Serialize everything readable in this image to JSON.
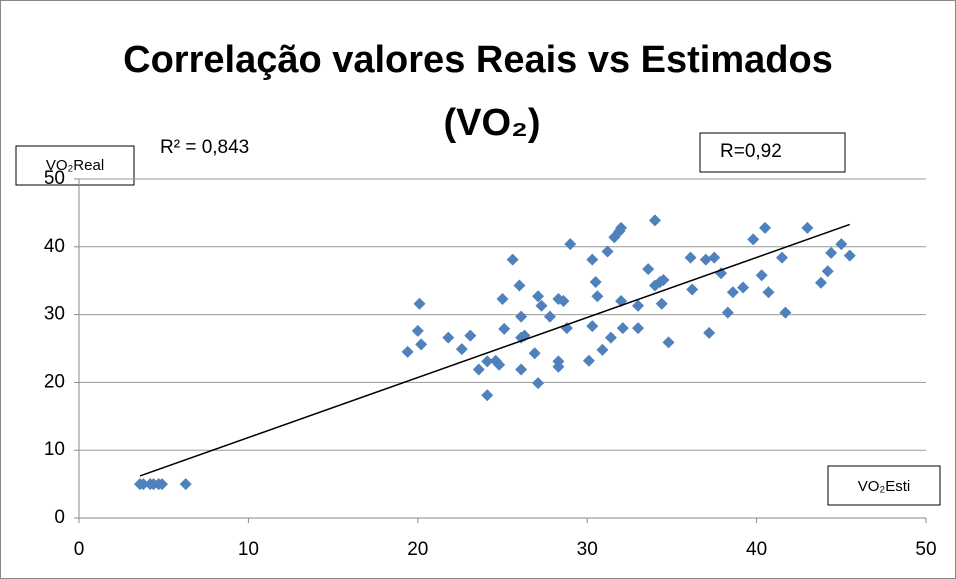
{
  "chart_data": {
    "type": "scatter",
    "title": [
      "Correlação valores Reais vs Estimados",
      "(VO₂)"
    ],
    "y_label": "VO₂Real",
    "x_label": "VO₂Esti",
    "annotations": [
      "R² = 0,843",
      "R=0,92"
    ],
    "color": "#4f81bd",
    "grid": true,
    "xlim": [
      0,
      50
    ],
    "xticks": [
      0,
      10,
      20,
      30,
      40,
      50
    ],
    "ylim": [
      0,
      50
    ],
    "yticks": [
      0,
      10,
      20,
      30,
      40,
      50
    ],
    "x": [
      3.6,
      3.8,
      4.2,
      4.4,
      4.7,
      4.9,
      6.3,
      19.4,
      20,
      20.1,
      20.2,
      21.8,
      22.6,
      23.1,
      23.6,
      24.1,
      24.1,
      24.6,
      24.8,
      25,
      25.1,
      25.6,
      26,
      26.1,
      26.1,
      26.3,
      26.1,
      26.9,
      27.1,
      27.1,
      27.3,
      27.8,
      28.3,
      28.3,
      28.3,
      28.6,
      28.8,
      29,
      30.1,
      30.3,
      30.3,
      30.5,
      30.6,
      30.9,
      31.2,
      31.4,
      31.6,
      31.9,
      32,
      32,
      32.1,
      33,
      33,
      33.6,
      34,
      34,
      34.3,
      34.4,
      34.5,
      34.8,
      36.1,
      36.2,
      37,
      37.2,
      37.5,
      37.9,
      38.3,
      38.6,
      39.2,
      39.8,
      40.3,
      40.5,
      40.7,
      41.5,
      41.7,
      43,
      43.8,
      44.2,
      44.4,
      45,
      45.5
    ],
    "values": [
      5,
      5,
      5,
      5,
      5,
      5,
      5,
      24.5,
      27.6,
      31.6,
      25.6,
      26.6,
      24.9,
      26.9,
      21.9,
      18.1,
      23.1,
      23.2,
      22.6,
      32.3,
      27.9,
      38.1,
      34.3,
      29.7,
      26.6,
      26.9,
      21.9,
      24.3,
      19.9,
      32.7,
      31.3,
      29.7,
      32.3,
      23.1,
      22.3,
      32,
      28,
      40.4,
      23.2,
      38.1,
      28.3,
      34.8,
      32.7,
      24.8,
      39.3,
      26.6,
      41.4,
      42.3,
      42.8,
      32,
      28,
      31.3,
      28,
      36.7,
      43.9,
      34.3,
      34.8,
      31.6,
      35.1,
      25.9,
      38.4,
      33.7,
      38.1,
      27.3,
      38.4,
      36.1,
      30.3,
      33.3,
      34,
      41.1,
      35.8,
      42.8,
      33.3,
      38.4,
      30.3,
      42.8,
      34.7,
      36.4,
      39.1,
      40.4,
      38.7
    ],
    "trendline": {
      "x": [
        3.6,
        45.5
      ],
      "y": [
        6.2,
        43.3
      ]
    }
  }
}
